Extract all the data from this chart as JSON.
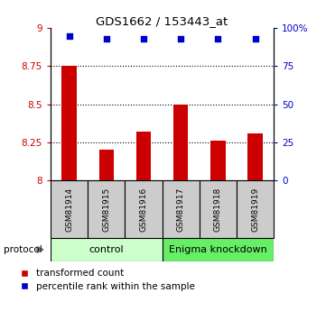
{
  "title": "GDS1662 / 153443_at",
  "samples": [
    "GSM81914",
    "GSM81915",
    "GSM81916",
    "GSM81917",
    "GSM81918",
    "GSM81919"
  ],
  "red_values": [
    8.75,
    8.2,
    8.32,
    8.5,
    8.26,
    8.31
  ],
  "blue_values": [
    95,
    93,
    93,
    93,
    93,
    93
  ],
  "ylim_left": [
    8.0,
    9.0
  ],
  "ylim_right": [
    0,
    100
  ],
  "yticks_left": [
    8.0,
    8.25,
    8.5,
    8.75,
    9.0
  ],
  "yticks_right": [
    0,
    25,
    50,
    75,
    100
  ],
  "ytick_labels_left": [
    "8",
    "8.25",
    "8.5",
    "8.75",
    "9"
  ],
  "ytick_labels_right": [
    "0",
    "25",
    "50",
    "75",
    "100%"
  ],
  "control_label": "control",
  "knockdown_label": "Enigma knockdown",
  "protocol_label": "protocol",
  "legend_red": "transformed count",
  "legend_blue": "percentile rank within the sample",
  "bar_color": "#cc0000",
  "dot_color": "#0000cc",
  "control_bg": "#ccffcc",
  "knockdown_bg": "#66ee66",
  "sample_box_bg": "#cccccc",
  "grid_dotted_levels": [
    8.25,
    8.5,
    8.75
  ],
  "bar_width": 0.4
}
